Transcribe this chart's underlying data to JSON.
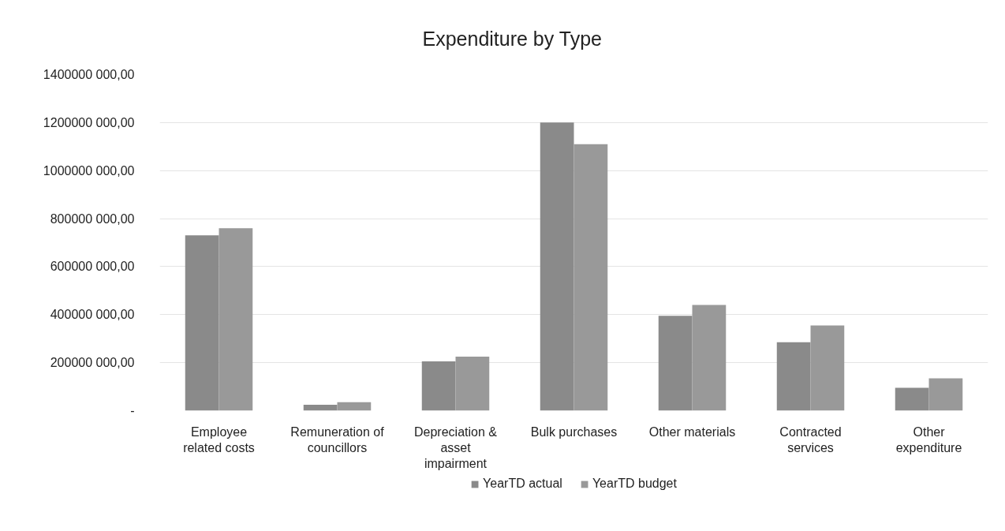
{
  "chart_data": {
    "type": "bar",
    "title": "Expenditure by Type",
    "categories": [
      "Employee related costs",
      "Remuneration of councillors",
      "Depreciation & asset impairment",
      "Bulk purchases",
      "Other materials",
      "Contracted services",
      "Other expenditure"
    ],
    "series": [
      {
        "name": "YearTD actual",
        "color": "#8a8a8a",
        "values": [
          730000000,
          25000000,
          205000000,
          1200000000,
          395000000,
          285000000,
          95000000
        ]
      },
      {
        "name": "YearTD budget",
        "color": "#999999",
        "values": [
          760000000,
          35000000,
          225000000,
          1110000000,
          440000000,
          355000000,
          135000000
        ]
      }
    ],
    "ylim": [
      0,
      1400000000
    ],
    "yticks": [
      {
        "value": 0,
        "label": "-"
      },
      {
        "value": 200000000,
        "label": "200000 000,00"
      },
      {
        "value": 400000000,
        "label": "400000 000,00"
      },
      {
        "value": 600000000,
        "label": "600000 000,00"
      },
      {
        "value": 800000000,
        "label": "800000 000,00"
      },
      {
        "value": 1000000000,
        "label": "1000000 000,00"
      },
      {
        "value": 1200000000,
        "label": "1200000 000,00"
      },
      {
        "value": 1400000000,
        "label": "1400000 000,00"
      }
    ],
    "grid": "y",
    "legend": "bottom"
  }
}
